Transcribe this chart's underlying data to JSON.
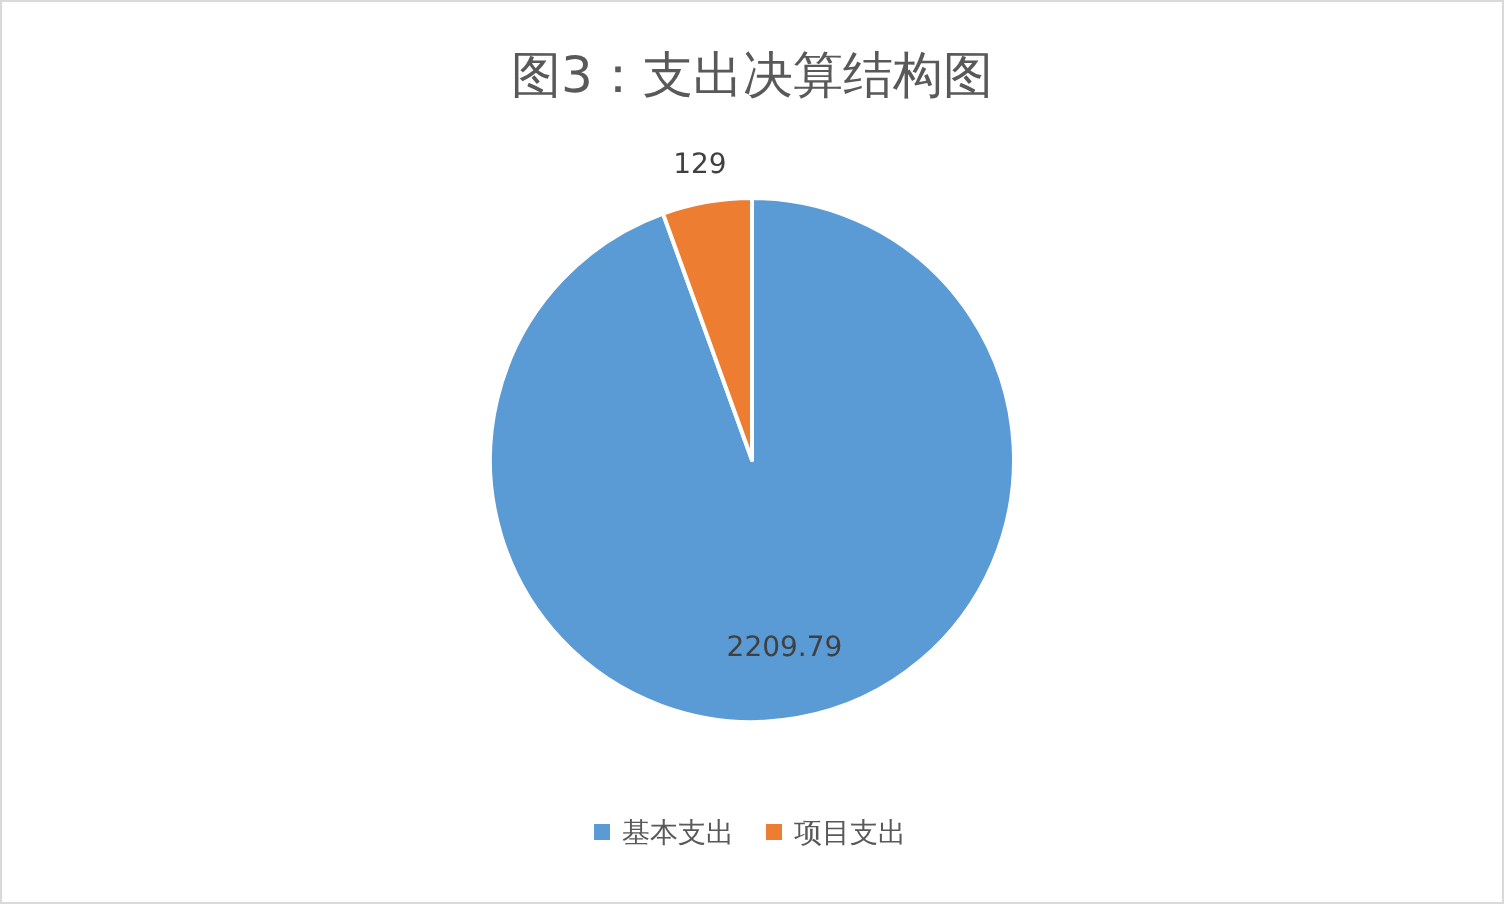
{
  "chart_data": {
    "type": "pie",
    "title": "图3：支出决算结构图",
    "categories": [
      "基本支出",
      "项目支出"
    ],
    "values": [
      2209.79,
      129
    ],
    "colors": [
      "#5b9bd5",
      "#ed7d31"
    ],
    "data_labels": true,
    "legend": "bottom"
  }
}
